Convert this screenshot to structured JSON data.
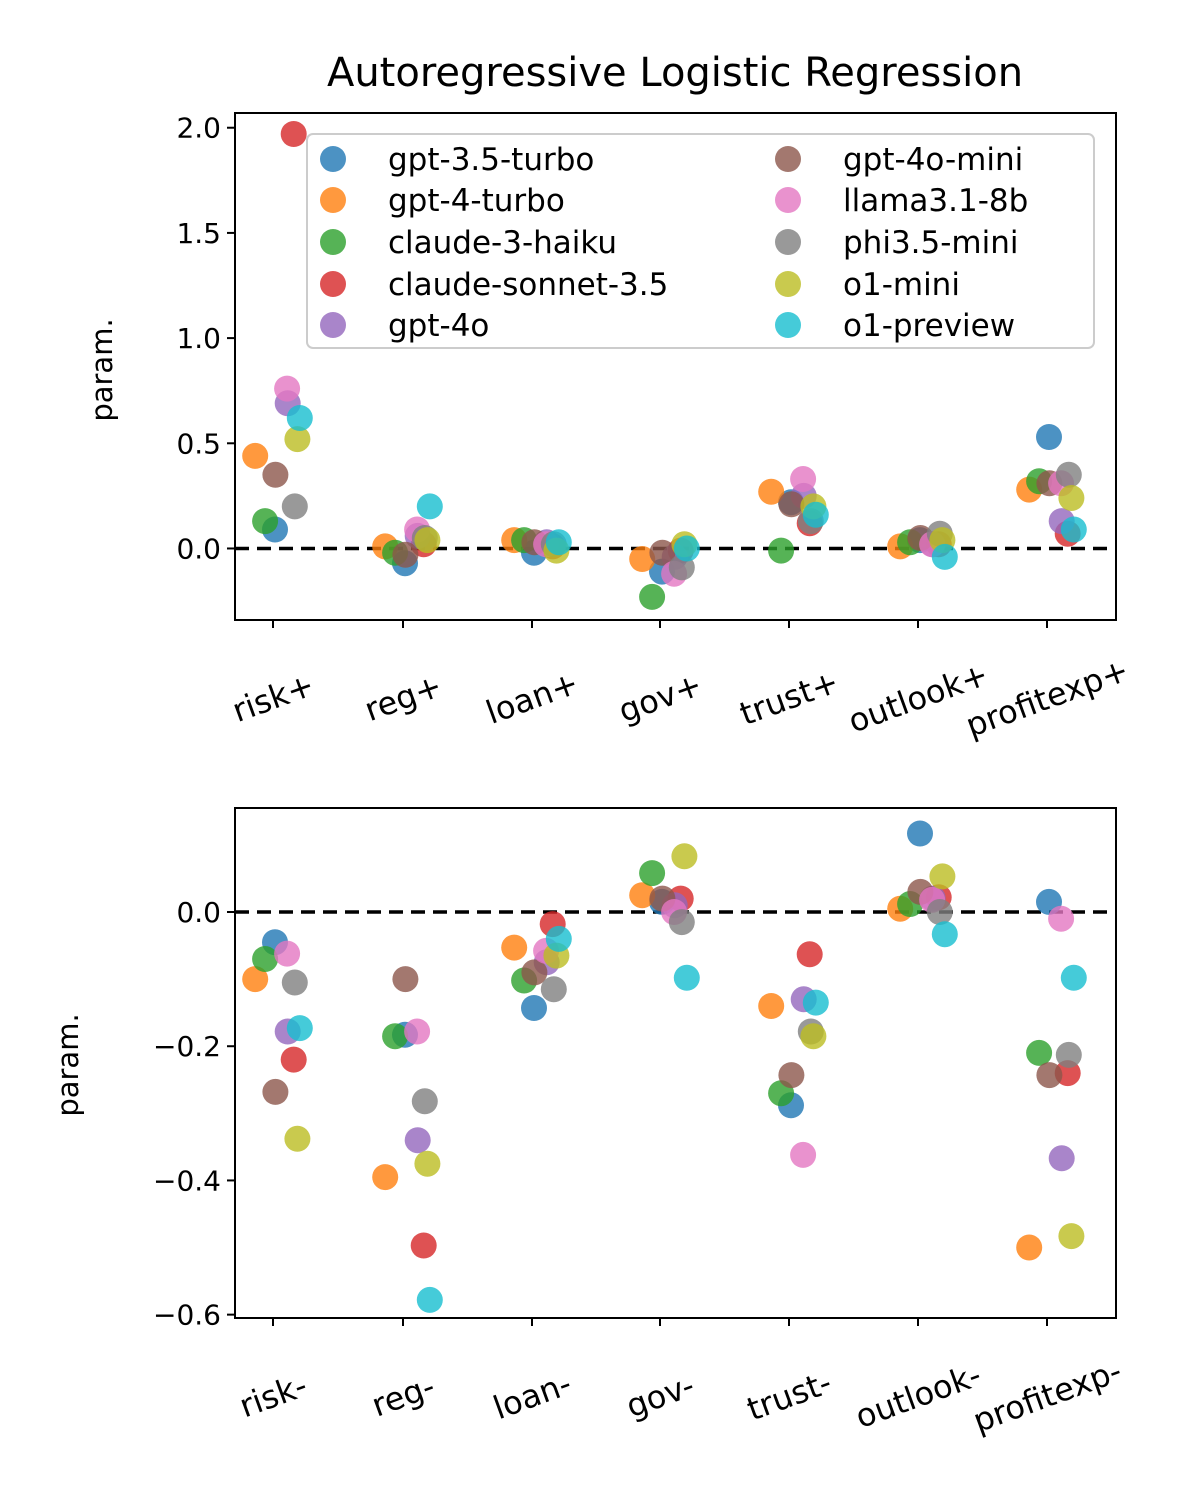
{
  "chart_data": [
    {
      "type": "scatter",
      "title": "Autoregressive Logistic Regression",
      "xlabel": "",
      "ylabel": "param.",
      "ylim": [
        -0.34,
        2.07
      ],
      "yticks": [
        "0.0",
        "0.5",
        "1.0",
        "1.5",
        "2.0"
      ],
      "ytick_values": [
        0.0,
        0.5,
        1.0,
        1.5,
        2.0
      ],
      "reference_line": 0.0,
      "categories": [
        "risk+",
        "reg+",
        "loan+",
        "gov+",
        "trust+",
        "outlook+",
        "profitexp+"
      ],
      "series": [
        {
          "name": "gpt-3.5-turbo",
          "values": [
            0.09,
            -0.07,
            -0.02,
            -0.11,
            0.22,
            0.04,
            0.53
          ]
        },
        {
          "name": "gpt-4-turbo",
          "values": [
            0.44,
            0.01,
            0.04,
            -0.05,
            0.27,
            0.01,
            0.28
          ]
        },
        {
          "name": "claude-3-haiku",
          "values": [
            0.13,
            -0.02,
            0.04,
            -0.23,
            -0.01,
            0.03,
            0.32
          ]
        },
        {
          "name": "claude-sonnet-3.5",
          "values": [
            1.97,
            0.02,
            0.01,
            -0.01,
            0.12,
            0.02,
            0.07
          ]
        },
        {
          "name": "gpt-4o",
          "values": [
            0.69,
            0.06,
            0.03,
            -0.04,
            0.25,
            0.02,
            0.13
          ]
        },
        {
          "name": "gpt-4o-mini",
          "values": [
            0.35,
            -0.03,
            0.03,
            -0.02,
            0.21,
            0.05,
            0.31
          ]
        },
        {
          "name": "llama3.1-8b",
          "values": [
            0.76,
            0.09,
            0.02,
            -0.12,
            0.33,
            0.02,
            0.31
          ]
        },
        {
          "name": "phi3.5-mini",
          "values": [
            0.2,
            0.05,
            0.02,
            -0.09,
            0.13,
            0.07,
            0.35
          ]
        },
        {
          "name": "o1-mini",
          "values": [
            0.52,
            0.04,
            -0.01,
            0.02,
            0.2,
            0.04,
            0.24
          ]
        },
        {
          "name": "o1-preview",
          "values": [
            0.62,
            0.2,
            0.03,
            0.0,
            0.16,
            -0.04,
            0.09
          ]
        }
      ],
      "legend": {
        "placement": "upper-right",
        "columns": 2
      }
    },
    {
      "type": "scatter",
      "title": "",
      "xlabel": "",
      "ylabel": "param.",
      "ylim": [
        -0.605,
        0.155
      ],
      "yticks": [
        "−0.6",
        "−0.4",
        "−0.2",
        "0.0"
      ],
      "ytick_values": [
        -0.6,
        -0.4,
        -0.2,
        0.0
      ],
      "reference_line": 0.0,
      "categories": [
        "risk-",
        "reg-",
        "loan-",
        "gov-",
        "trust-",
        "outlook-",
        "profitexp-"
      ],
      "series": [
        {
          "name": "gpt-3.5-turbo",
          "values": [
            -0.045,
            -0.183,
            -0.143,
            0.015,
            -0.288,
            0.117,
            0.015
          ]
        },
        {
          "name": "gpt-4-turbo",
          "values": [
            -0.1,
            -0.395,
            -0.053,
            0.025,
            -0.14,
            0.005,
            -0.5
          ]
        },
        {
          "name": "claude-3-haiku",
          "values": [
            -0.07,
            -0.185,
            -0.102,
            0.058,
            -0.27,
            0.012,
            -0.21
          ]
        },
        {
          "name": "claude-sonnet-3.5",
          "values": [
            -0.22,
            -0.497,
            -0.018,
            0.02,
            -0.063,
            0.022,
            -0.24
          ]
        },
        {
          "name": "gpt-4o",
          "values": [
            -0.178,
            -0.34,
            -0.075,
            0.01,
            -0.13,
            0.02,
            -0.367
          ]
        },
        {
          "name": "gpt-4o-mini",
          "values": [
            -0.268,
            -0.1,
            -0.09,
            0.02,
            -0.243,
            0.03,
            -0.243
          ]
        },
        {
          "name": "llama3.1-8b",
          "values": [
            -0.062,
            -0.178,
            -0.058,
            0.0,
            -0.362,
            0.018,
            -0.01
          ]
        },
        {
          "name": "phi3.5-mini",
          "values": [
            -0.105,
            -0.282,
            -0.115,
            -0.015,
            -0.178,
            0.0,
            -0.213
          ]
        },
        {
          "name": "o1-mini",
          "values": [
            -0.338,
            -0.375,
            -0.065,
            0.083,
            -0.185,
            0.053,
            -0.483
          ]
        },
        {
          "name": "o1-preview",
          "values": [
            -0.173,
            -0.578,
            -0.04,
            -0.098,
            -0.135,
            -0.033,
            -0.098
          ]
        }
      ]
    }
  ],
  "colors": {
    "gpt-3.5-turbo": "#1f77b4",
    "gpt-4-turbo": "#ff7f0e",
    "claude-3-haiku": "#2ca02c",
    "claude-sonnet-3.5": "#d62728",
    "gpt-4o": "#9467bd",
    "gpt-4o-mini": "#8c564b",
    "llama3.1-8b": "#e377c2",
    "phi3.5-mini": "#7f7f7f",
    "o1-mini": "#bcbd22",
    "o1-preview": "#17becf"
  }
}
